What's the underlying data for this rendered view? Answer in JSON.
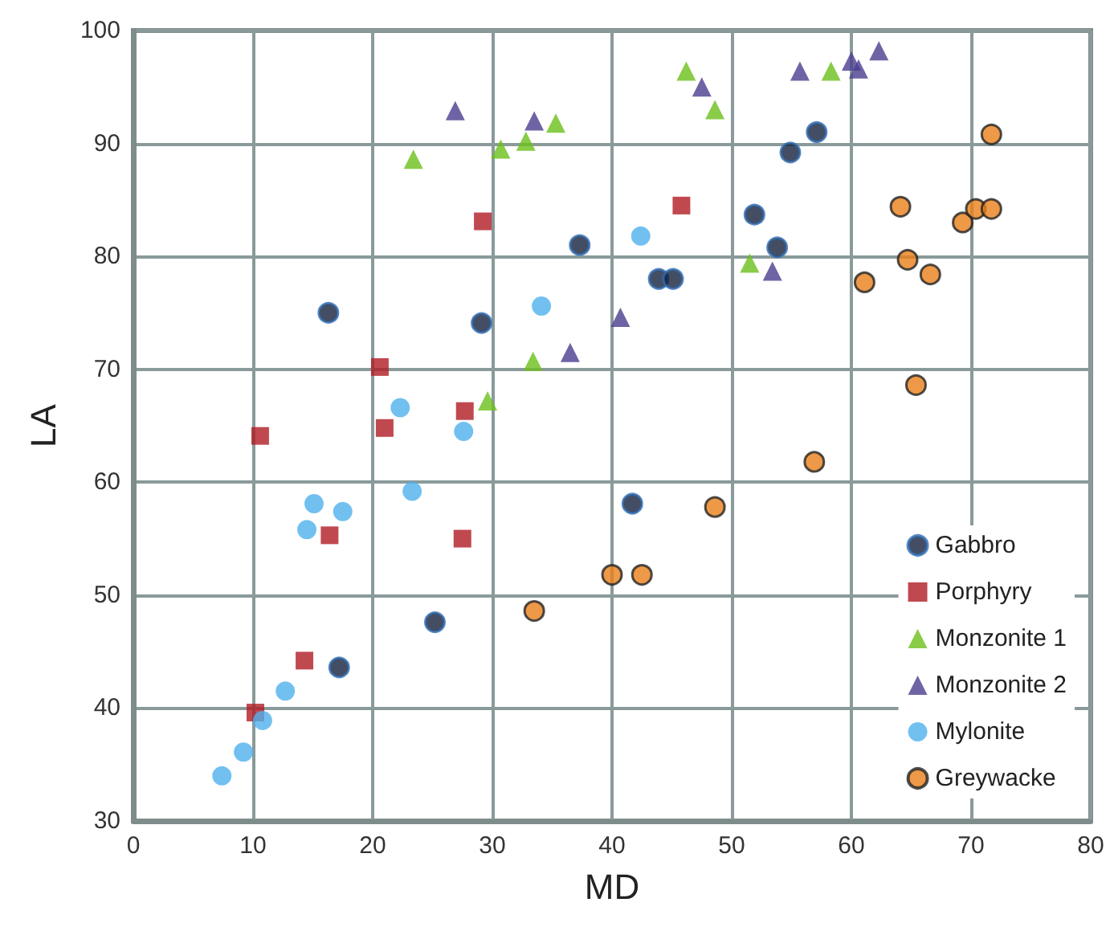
{
  "chart_data": {
    "type": "scatter",
    "xlabel": "MD",
    "ylabel": "LA",
    "xlim": [
      0,
      80
    ],
    "ylim": [
      30,
      100
    ],
    "xticks": [
      0,
      10,
      20,
      30,
      40,
      50,
      60,
      70,
      80
    ],
    "yticks": [
      30,
      40,
      50,
      60,
      70,
      80,
      90,
      100
    ],
    "grid": true,
    "legend": "bottom right",
    "series": [
      {
        "name": "Gabbro",
        "color": "#14223f",
        "marker": "circle",
        "x": [
          16.3,
          29.1,
          37.3,
          41.7,
          43.9,
          45.1,
          51.9,
          53.8,
          54.9,
          57.1,
          17.2,
          25.2
        ],
        "values": [
          75,
          74.1,
          81,
          58.1,
          78,
          78,
          83.7,
          80.8,
          89.2,
          91,
          43.6,
          47.6
        ]
      },
      {
        "name": "Porphyry",
        "color": "#b01c24",
        "marker": "square",
        "x": [
          10.6,
          20.6,
          21,
          29.2,
          27.7,
          16.4,
          27.5,
          45.8,
          14.3,
          10.2
        ],
        "values": [
          64.1,
          70.2,
          64.8,
          83.1,
          66.3,
          55.3,
          55,
          84.5,
          44.2,
          39.6
        ]
      },
      {
        "name": "Monzonite 1",
        "color": "#6cbf1a",
        "marker": "triangle",
        "x": [
          23.4,
          30.7,
          32.8,
          35.3,
          29.6,
          33.4,
          46.2,
          48.6,
          51.5,
          58.3
        ],
        "values": [
          88.6,
          89.5,
          90.2,
          91.8,
          67.2,
          70.7,
          96.4,
          93,
          79.4,
          96.4
        ]
      },
      {
        "name": "Monzonite 2",
        "color": "#4a3d8f",
        "marker": "triangle",
        "x": [
          26.9,
          33.5,
          36.5,
          40.7,
          47.5,
          53.4,
          55.7,
          60,
          60.6,
          62.3
        ],
        "values": [
          92.9,
          92,
          71.5,
          74.6,
          95,
          78.7,
          96.4,
          97.3,
          96.6,
          98.2
        ]
      },
      {
        "name": "Mylonite",
        "color": "#4fb0ec",
        "marker": "circle",
        "x": [
          7.4,
          9.2,
          10.8,
          12.7,
          14.5,
          15.1,
          17.5,
          23.3,
          22.3,
          27.6,
          34.1,
          42.4
        ],
        "values": [
          34,
          36.1,
          38.9,
          41.5,
          55.8,
          58.1,
          57.4,
          59.2,
          66.6,
          64.5,
          75.6,
          81.8
        ]
      },
      {
        "name": "Greywacke",
        "color": "#e8801a",
        "marker": "circle",
        "x": [
          33.5,
          40,
          42.5,
          48.6,
          56.9,
          61.1,
          65.4,
          64.7,
          66.6,
          64.1,
          69.3,
          70.4,
          71.7,
          71.7
        ],
        "values": [
          48.6,
          51.8,
          51.8,
          57.8,
          61.8,
          77.7,
          68.6,
          79.7,
          78.4,
          84.4,
          83,
          84.2,
          84.2,
          90.8
        ]
      }
    ]
  }
}
